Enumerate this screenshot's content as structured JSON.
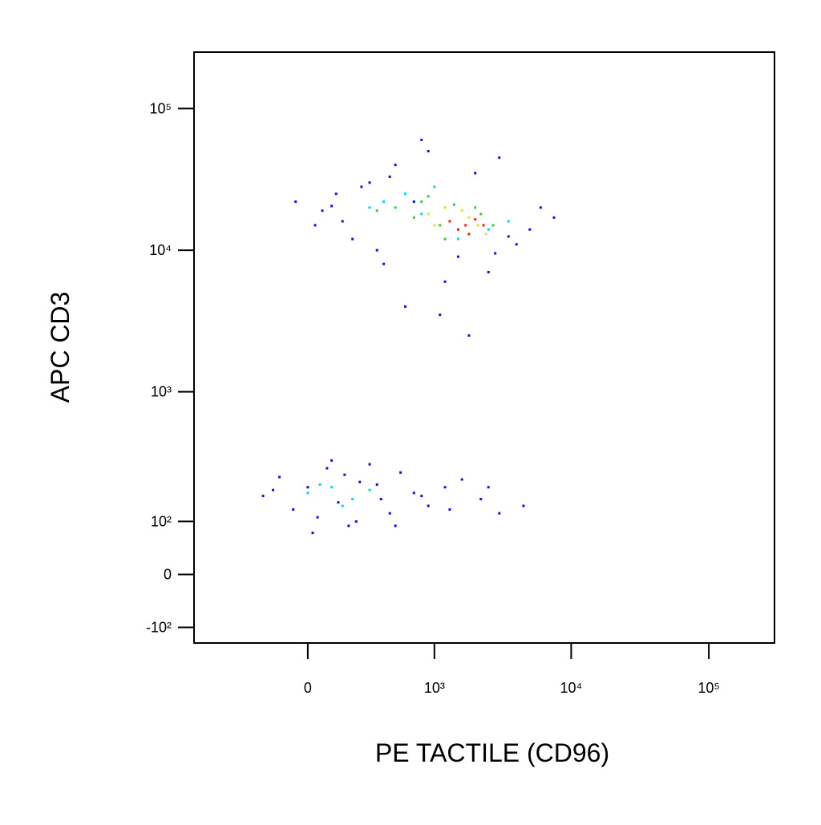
{
  "chart_data": {
    "type": "scatter",
    "x_label": "PE TACTILE (CD96)",
    "y_label": "APC CD3",
    "xscale": "biexponential",
    "yscale": "biexponential",
    "xlim": [
      -800,
      300000
    ],
    "ylim": [
      -140,
      250000
    ],
    "xticks": [
      0,
      {
        "value": 1000,
        "label": "10³"
      },
      {
        "value": 10000,
        "label": "10⁴"
      },
      {
        "value": 100000,
        "label": "10⁵"
      }
    ],
    "yticks": [
      {
        "value": -100,
        "label": "-10²"
      },
      0,
      {
        "value": 100,
        "label": "10²"
      },
      {
        "value": 1000,
        "label": "10³"
      },
      {
        "value": 10000,
        "label": "10⁴"
      },
      {
        "value": 100000,
        "label": "10⁵"
      }
    ],
    "series": [
      {
        "color": "#1010e0",
        "x": [
          60,
          120,
          200,
          300,
          400,
          500,
          700,
          900,
          1200,
          1500,
          2000,
          2500,
          3000,
          4000,
          5000,
          6000,
          7500,
          150,
          250,
          350,
          450,
          600,
          800,
          1100,
          1800,
          2800,
          3500,
          100,
          -50,
          30,
          -200,
          -120,
          -60,
          0,
          40,
          80,
          130,
          180,
          240,
          300,
          380,
          450,
          550,
          700,
          900,
          1200,
          1600,
          2200,
          3000,
          4500,
          -150,
          20,
          100,
          160,
          220,
          350,
          500,
          800,
          1300,
          2500
        ],
        "y": [
          19000,
          25000,
          12000,
          30000,
          8000,
          40000,
          22000,
          50000,
          6000,
          9000,
          35000,
          7000,
          45000,
          11000,
          14000,
          20000,
          17000,
          16000,
          28000,
          10000,
          33000,
          4000,
          60000,
          3500,
          2500,
          9500,
          12500,
          20500,
          22000,
          15000,
          170,
          240,
          130,
          200,
          110,
          280,
          150,
          90,
          220,
          300,
          160,
          120,
          260,
          180,
          140,
          200,
          230,
          160,
          120,
          140,
          190,
          75,
          320,
          250,
          100,
          210,
          90,
          170,
          130,
          200
        ]
      },
      {
        "color": "#00d8e8",
        "x": [
          400,
          800,
          1500,
          2500,
          3500,
          600,
          1000,
          300,
          0,
          100,
          200,
          300,
          50,
          150
        ],
        "y": [
          22000,
          18000,
          12000,
          14000,
          16000,
          25000,
          28000,
          20000,
          180,
          200,
          160,
          190,
          210,
          140
        ]
      },
      {
        "color": "#30d030",
        "x": [
          500,
          700,
          900,
          1100,
          1400,
          1800,
          2200,
          2700,
          350,
          800,
          1200,
          2000
        ],
        "y": [
          20000,
          17000,
          24000,
          15000,
          21000,
          13000,
          18000,
          15000,
          19000,
          22000,
          12000,
          20000
        ]
      },
      {
        "color": "#e8e020",
        "x": [
          900,
          1200,
          1500,
          1800,
          2100,
          1000,
          1600,
          2400
        ],
        "y": [
          18000,
          20000,
          14000,
          17000,
          15000,
          15000,
          19000,
          13000
        ]
      },
      {
        "color": "#f02010",
        "x": [
          1300,
          1700,
          2000,
          1500,
          2300,
          1800
        ],
        "y": [
          16000,
          15000,
          16500,
          14000,
          15000,
          13000
        ]
      }
    ]
  }
}
